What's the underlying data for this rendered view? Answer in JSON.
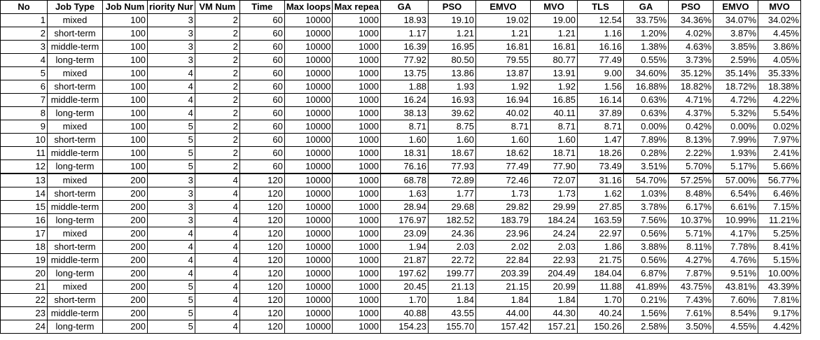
{
  "headers": [
    "No",
    "Job Type",
    "Job Num",
    "riority Nur",
    "VM Num",
    "Time",
    "Max loops",
    "Max repea",
    "GA",
    "PSO",
    "EMVO",
    "MVO",
    "TLS",
    "GA",
    "PSO",
    "EMVO",
    "MVO"
  ],
  "rows": [
    [
      "1",
      "mixed",
      "100",
      "3",
      "2",
      "60",
      "10000",
      "1000",
      "18.93",
      "19.10",
      "19.02",
      "19.00",
      "12.54",
      "33.75%",
      "34.36%",
      "34.07%",
      "34.02%"
    ],
    [
      "2",
      "short-term",
      "100",
      "3",
      "2",
      "60",
      "10000",
      "1000",
      "1.17",
      "1.21",
      "1.21",
      "1.21",
      "1.16",
      "1.20%",
      "4.02%",
      "3.87%",
      "4.45%"
    ],
    [
      "3",
      "middle-term",
      "100",
      "3",
      "2",
      "60",
      "10000",
      "1000",
      "16.39",
      "16.95",
      "16.81",
      "16.81",
      "16.16",
      "1.38%",
      "4.63%",
      "3.85%",
      "3.86%"
    ],
    [
      "4",
      "long-term",
      "100",
      "3",
      "2",
      "60",
      "10000",
      "1000",
      "77.92",
      "80.50",
      "79.55",
      "80.77",
      "77.49",
      "0.55%",
      "3.73%",
      "2.59%",
      "4.05%"
    ],
    [
      "5",
      "mixed",
      "100",
      "4",
      "2",
      "60",
      "10000",
      "1000",
      "13.75",
      "13.86",
      "13.87",
      "13.91",
      "9.00",
      "34.60%",
      "35.12%",
      "35.14%",
      "35.33%"
    ],
    [
      "6",
      "short-term",
      "100",
      "4",
      "2",
      "60",
      "10000",
      "1000",
      "1.88",
      "1.93",
      "1.92",
      "1.92",
      "1.56",
      "16.88%",
      "18.82%",
      "18.72%",
      "18.38%"
    ],
    [
      "7",
      "middle-term",
      "100",
      "4",
      "2",
      "60",
      "10000",
      "1000",
      "16.24",
      "16.93",
      "16.94",
      "16.85",
      "16.14",
      "0.63%",
      "4.71%",
      "4.72%",
      "4.22%"
    ],
    [
      "8",
      "long-term",
      "100",
      "4",
      "2",
      "60",
      "10000",
      "1000",
      "38.13",
      "39.62",
      "40.02",
      "40.11",
      "37.89",
      "0.63%",
      "4.37%",
      "5.32%",
      "5.54%"
    ],
    [
      "9",
      "mixed",
      "100",
      "5",
      "2",
      "60",
      "10000",
      "1000",
      "8.71",
      "8.75",
      "8.71",
      "8.71",
      "8.71",
      "0.00%",
      "0.42%",
      "0.00%",
      "0.02%"
    ],
    [
      "10",
      "short-term",
      "100",
      "5",
      "2",
      "60",
      "10000",
      "1000",
      "1.60",
      "1.60",
      "1.60",
      "1.60",
      "1.47",
      "7.89%",
      "8.13%",
      "7.99%",
      "7.97%"
    ],
    [
      "11",
      "middle-term",
      "100",
      "5",
      "2",
      "60",
      "10000",
      "1000",
      "18.31",
      "18.67",
      "18.62",
      "18.71",
      "18.26",
      "0.28%",
      "2.22%",
      "1.93%",
      "2.41%"
    ],
    [
      "12",
      "long-term",
      "100",
      "5",
      "2",
      "60",
      "10000",
      "1000",
      "76.16",
      "77.93",
      "77.49",
      "77.90",
      "73.49",
      "3.51%",
      "5.70%",
      "5.17%",
      "5.66%"
    ],
    [
      "13",
      "mixed",
      "200",
      "3",
      "4",
      "120",
      "10000",
      "1000",
      "68.78",
      "72.89",
      "72.46",
      "72.07",
      "31.16",
      "54.70%",
      "57.25%",
      "57.00%",
      "56.77%"
    ],
    [
      "14",
      "short-term",
      "200",
      "3",
      "4",
      "120",
      "10000",
      "1000",
      "1.63",
      "1.77",
      "1.73",
      "1.73",
      "1.62",
      "1.03%",
      "8.48%",
      "6.54%",
      "6.46%"
    ],
    [
      "15",
      "middle-term",
      "200",
      "3",
      "4",
      "120",
      "10000",
      "1000",
      "28.94",
      "29.68",
      "29.82",
      "29.99",
      "27.85",
      "3.78%",
      "6.17%",
      "6.61%",
      "7.15%"
    ],
    [
      "16",
      "long-term",
      "200",
      "3",
      "4",
      "120",
      "10000",
      "1000",
      "176.97",
      "182.52",
      "183.79",
      "184.24",
      "163.59",
      "7.56%",
      "10.37%",
      "10.99%",
      "11.21%"
    ],
    [
      "17",
      "mixed",
      "200",
      "4",
      "4",
      "120",
      "10000",
      "1000",
      "23.09",
      "24.36",
      "23.96",
      "24.24",
      "22.97",
      "0.56%",
      "5.71%",
      "4.17%",
      "5.25%"
    ],
    [
      "18",
      "short-term",
      "200",
      "4",
      "4",
      "120",
      "10000",
      "1000",
      "1.94",
      "2.03",
      "2.02",
      "2.03",
      "1.86",
      "3.88%",
      "8.11%",
      "7.78%",
      "8.41%"
    ],
    [
      "19",
      "middle-term",
      "200",
      "4",
      "4",
      "120",
      "10000",
      "1000",
      "21.87",
      "22.72",
      "22.84",
      "22.93",
      "21.75",
      "0.56%",
      "4.27%",
      "4.76%",
      "5.15%"
    ],
    [
      "20",
      "long-term",
      "200",
      "4",
      "4",
      "120",
      "10000",
      "1000",
      "197.62",
      "199.77",
      "203.39",
      "204.49",
      "184.04",
      "6.87%",
      "7.87%",
      "9.51%",
      "10.00%"
    ],
    [
      "21",
      "mixed",
      "200",
      "5",
      "4",
      "120",
      "10000",
      "1000",
      "20.45",
      "21.13",
      "21.15",
      "20.99",
      "11.88",
      "41.89%",
      "43.75%",
      "43.81%",
      "43.39%"
    ],
    [
      "22",
      "short-term",
      "200",
      "5",
      "4",
      "120",
      "10000",
      "1000",
      "1.70",
      "1.84",
      "1.84",
      "1.84",
      "1.70",
      "0.21%",
      "7.43%",
      "7.60%",
      "7.81%"
    ],
    [
      "23",
      "middle-term",
      "200",
      "5",
      "4",
      "120",
      "10000",
      "1000",
      "40.88",
      "43.55",
      "44.00",
      "44.30",
      "40.24",
      "1.56%",
      "7.61%",
      "8.54%",
      "9.17%"
    ],
    [
      "24",
      "long-term",
      "200",
      "5",
      "4",
      "120",
      "10000",
      "1000",
      "154.23",
      "155.70",
      "157.42",
      "157.21",
      "150.26",
      "2.58%",
      "3.50%",
      "4.55%",
      "4.42%"
    ]
  ]
}
